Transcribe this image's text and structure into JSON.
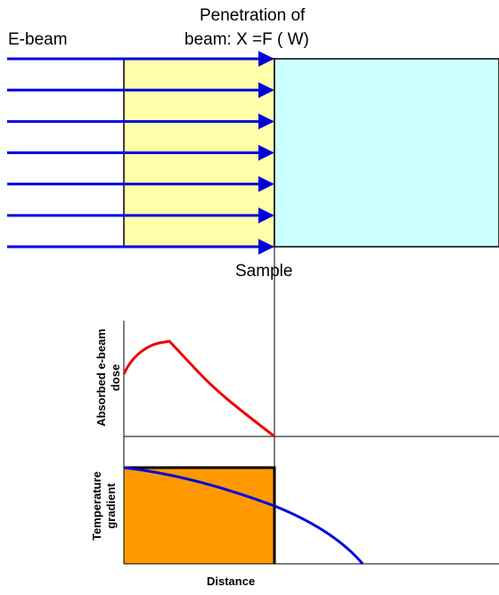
{
  "labels": {
    "ebeam": "E-beam",
    "penetration_line1": "Penetration of",
    "penetration_line2": "beam: X =F ( W)",
    "sample": "Sample",
    "absorbed_line1": "Absorbed e-beam",
    "absorbed_line2": "dose",
    "temperature_line1": "Temperature",
    "temperature_line2": "gradient",
    "distance": "Distance"
  },
  "arrows": {
    "count": 7
  },
  "colors": {
    "arrow": "#0000dd",
    "penetration_zone": "#ffffaa",
    "sample": "#ccffff",
    "dose_curve": "#ee0000",
    "temperature_curve": "#0000dd",
    "temperature_fill": "#ff9900",
    "outline": "#000000"
  }
}
